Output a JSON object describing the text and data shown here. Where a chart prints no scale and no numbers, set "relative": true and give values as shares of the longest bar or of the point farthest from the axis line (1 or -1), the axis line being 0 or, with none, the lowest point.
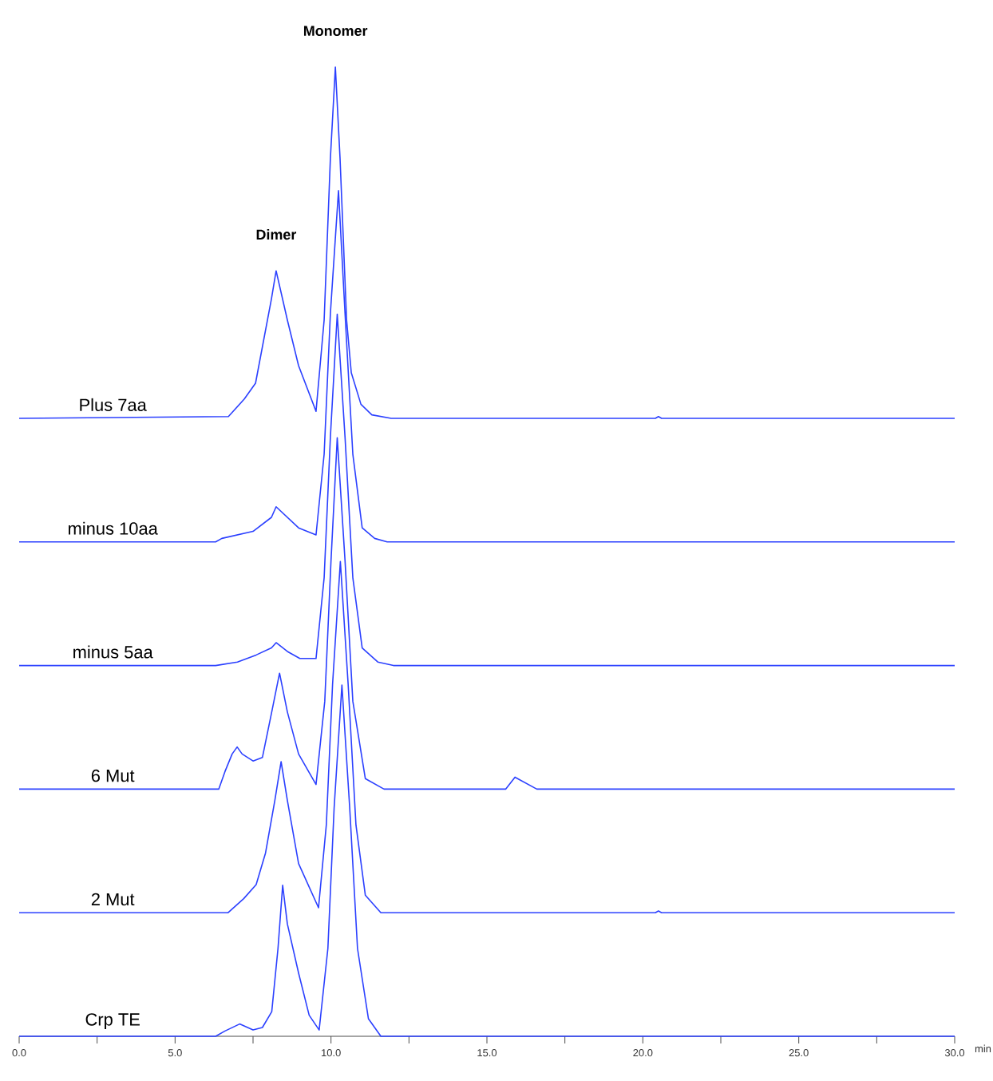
{
  "chart_data": [
    {
      "type": "line",
      "relative": true,
      "xlim": [
        0,
        30
      ],
      "tick_labels": false,
      "x": [
        0,
        6.71,
        7.22,
        7.58,
        8.09,
        8.24,
        8.6,
        8.96,
        9.52,
        9.78,
        9.98,
        10.14,
        10.29,
        10.5,
        10.65,
        10.96,
        11.31,
        11.93,
        20.4,
        20.5,
        20.6,
        30
      ],
      "series": [
        {
          "name": "Plus 7aa",
          "color": "#2b40ff",
          "values": [
            0,
            0.005,
            0.055,
            0.1,
            0.34,
            0.42,
            0.28,
            0.15,
            0.02,
            0.28,
            0.74,
            1,
            0.74,
            0.28,
            0.13,
            0.04,
            0.01,
            0,
            0,
            0.005,
            0,
            0
          ]
        }
      ],
      "annotations": [
        {
          "text": "Dimer",
          "x": 8.24,
          "y": 0.42
        },
        {
          "text": "Monomer",
          "x": 10.14,
          "y": 1
        }
      ]
    },
    {
      "type": "line",
      "relative": true,
      "xlim": [
        0,
        30
      ],
      "tick_labels": false,
      "x": [
        0,
        6.3,
        6.5,
        7.5,
        8.09,
        8.24,
        8.6,
        8.96,
        9.52,
        9.78,
        9.98,
        10.24,
        10.45,
        10.7,
        11.0,
        11.4,
        11.8,
        30
      ],
      "series": [
        {
          "name": "minus 10aa",
          "color": "#2b40ff",
          "values": [
            0,
            0,
            0.01,
            0.03,
            0.07,
            0.1,
            0.07,
            0.04,
            0.02,
            0.25,
            0.65,
            1,
            0.65,
            0.25,
            0.04,
            0.01,
            0,
            0
          ]
        }
      ]
    },
    {
      "type": "line",
      "relative": true,
      "xlim": [
        0,
        30
      ],
      "tick_labels": false,
      "x": [
        0,
        6.3,
        7.0,
        7.6,
        8.09,
        8.24,
        8.6,
        9.0,
        9.52,
        9.78,
        9.98,
        10.2,
        10.45,
        10.7,
        11.0,
        11.5,
        12,
        30
      ],
      "series": [
        {
          "name": "minus 5aa",
          "color": "#2b40ff",
          "values": [
            0,
            0,
            0.01,
            0.03,
            0.05,
            0.065,
            0.04,
            0.02,
            0.02,
            0.25,
            0.65,
            1,
            0.65,
            0.25,
            0.05,
            0.01,
            0,
            0
          ]
        }
      ]
    },
    {
      "type": "line",
      "relative": true,
      "xlim": [
        0,
        30
      ],
      "tick_labels": false,
      "x": [
        0,
        6.4,
        6.6,
        6.83,
        6.99,
        7.15,
        7.5,
        7.8,
        8.1,
        8.35,
        8.6,
        8.96,
        9.52,
        9.8,
        10.0,
        10.2,
        10.45,
        10.7,
        11.1,
        11.7,
        15.6,
        15.9,
        16.6,
        30
      ],
      "series": [
        {
          "name": "6 Mut",
          "color": "#2b40ff",
          "values": [
            0,
            0,
            0.05,
            0.1,
            0.12,
            0.1,
            0.08,
            0.09,
            0.22,
            0.33,
            0.22,
            0.1,
            0.013,
            0.25,
            0.65,
            1,
            0.65,
            0.25,
            0.03,
            0,
            0,
            0.034,
            0,
            0
          ]
        }
      ]
    },
    {
      "type": "line",
      "relative": true,
      "xlim": [
        0,
        30
      ],
      "tick_labels": false,
      "x": [
        0,
        6.7,
        7.2,
        7.6,
        7.9,
        8.2,
        8.4,
        8.6,
        8.96,
        9.6,
        9.85,
        10.05,
        10.3,
        10.55,
        10.8,
        11.1,
        11.6,
        20.4,
        20.5,
        20.6,
        30
      ],
      "series": [
        {
          "name": "2 Mut",
          "color": "#2b40ff",
          "values": [
            0,
            0,
            0.04,
            0.08,
            0.17,
            0.32,
            0.43,
            0.32,
            0.14,
            0.014,
            0.25,
            0.65,
            1,
            0.65,
            0.25,
            0.05,
            0,
            0,
            0.005,
            0,
            0
          ]
        }
      ]
    },
    {
      "type": "line",
      "relative": true,
      "xlim": [
        0,
        30
      ],
      "tick_labels": "x",
      "xlabel": "min",
      "xticks": [
        {
          "value": 0,
          "label": "0.0"
        },
        {
          "value": 2.5,
          "label": null
        },
        {
          "value": 5,
          "label": "5.0"
        },
        {
          "value": 7.5,
          "label": null
        },
        {
          "value": 10,
          "label": "10.0"
        },
        {
          "value": 12.5,
          "label": null
        },
        {
          "value": 15,
          "label": "15.0"
        },
        {
          "value": 17.5,
          "label": null
        },
        {
          "value": 20,
          "label": "20.0"
        },
        {
          "value": 22.5,
          "label": null
        },
        {
          "value": 25,
          "label": "25.0"
        },
        {
          "value": 27.5,
          "label": null
        },
        {
          "value": 30,
          "label": "30.0"
        }
      ],
      "x": [
        0,
        6.3,
        6.6,
        7.07,
        7.5,
        7.8,
        8.1,
        8.3,
        8.45,
        8.6,
        8.96,
        9.3,
        9.62,
        9.9,
        10.1,
        10.35,
        10.6,
        10.85,
        11.2,
        11.6,
        30
      ],
      "series": [
        {
          "name": "Crp TE",
          "color": "#2b40ff",
          "values": [
            0,
            0,
            0.015,
            0.035,
            0.018,
            0.025,
            0.07,
            0.25,
            0.43,
            0.32,
            0.18,
            0.06,
            0.018,
            0.25,
            0.65,
            1,
            0.65,
            0.25,
            0.05,
            0,
            0
          ]
        }
      ]
    }
  ]
}
